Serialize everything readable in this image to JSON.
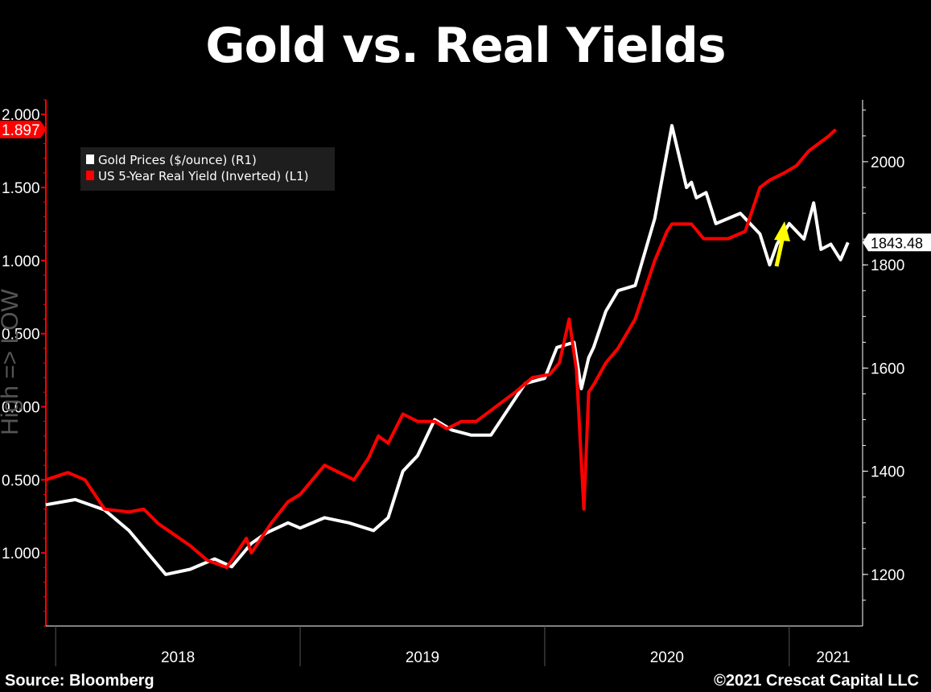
{
  "title": "Gold vs. Real Yields",
  "footer": {
    "source": "Source: Bloomberg",
    "copyright": "©2021 Crescat Capital LLC"
  },
  "colors": {
    "background": "#000000",
    "gold_series": "#ffffff",
    "yield_series": "#ff0000",
    "arrow": "#ffff00",
    "axis": "#ff0000"
  },
  "chart_data": {
    "type": "line",
    "legend": {
      "placement": "top-left",
      "entries": [
        "Gold Prices ($/ounce) (R1)",
        "US 5-Year Real Yield (Inverted) (L1)"
      ]
    },
    "grid": false,
    "x_axis": {
      "labels": [
        "2018",
        "2019",
        "2020",
        "2021"
      ],
      "range": [
        2017.96,
        2021.3
      ]
    },
    "left_axis": {
      "label": "High => LOW",
      "tick_labels": [
        "2.000",
        "1.500",
        "1.000",
        "0.500",
        "0.000",
        "0.500",
        "1.000"
      ],
      "ticks": [
        2.0,
        1.5,
        1.0,
        0.5,
        0.0,
        -0.5,
        -1.0
      ],
      "range": [
        -1.5,
        2.1
      ],
      "last_value_label": "1.897",
      "last_value": 1.897
    },
    "right_axis": {
      "tick_labels": [
        "1200",
        "1400",
        "1600",
        "1800",
        "2000"
      ],
      "ticks": [
        1200,
        1400,
        1600,
        1800,
        2000
      ],
      "range": [
        1100,
        2120
      ],
      "last_value_label": "1843.48",
      "last_value": 1843.48
    },
    "series": [
      {
        "name": "Gold Prices ($/ounce) (R1)",
        "axis": "right",
        "x": [
          2017.96,
          2018.08,
          2018.2,
          2018.3,
          2018.45,
          2018.55,
          2018.65,
          2018.72,
          2018.8,
          2018.86,
          2018.95,
          2019.0,
          2019.1,
          2019.2,
          2019.3,
          2019.36,
          2019.42,
          2019.48,
          2019.55,
          2019.62,
          2019.7,
          2019.78,
          2019.85,
          2019.92,
          2020.0,
          2020.05,
          2020.12,
          2020.15,
          2020.18,
          2020.2,
          2020.25,
          2020.3,
          2020.37,
          2020.45,
          2020.52,
          2020.58,
          2020.6,
          2020.62,
          2020.66,
          2020.7,
          2020.75,
          2020.8,
          2020.88,
          2020.92,
          2020.95,
          2021.0,
          2021.06,
          2021.1,
          2021.13,
          2021.17,
          2021.21,
          2021.24
        ],
        "y": [
          1335,
          1345,
          1325,
          1285,
          1200,
          1210,
          1230,
          1215,
          1260,
          1280,
          1300,
          1290,
          1310,
          1300,
          1285,
          1310,
          1400,
          1430,
          1500,
          1480,
          1470,
          1470,
          1520,
          1570,
          1580,
          1640,
          1650,
          1560,
          1620,
          1640,
          1710,
          1750,
          1760,
          1890,
          2070,
          1950,
          1960,
          1930,
          1940,
          1880,
          1890,
          1900,
          1860,
          1800,
          1840,
          1880,
          1850,
          1920,
          1830,
          1840,
          1810,
          1843.48
        ]
      },
      {
        "name": "US 5-Year Real Yield (Inverted) (L1)",
        "axis": "left",
        "x": [
          2017.96,
          2018.05,
          2018.12,
          2018.2,
          2018.3,
          2018.36,
          2018.42,
          2018.55,
          2018.62,
          2018.7,
          2018.78,
          2018.8,
          2018.88,
          2018.95,
          2019.0,
          2019.1,
          2019.16,
          2019.22,
          2019.28,
          2019.32,
          2019.36,
          2019.42,
          2019.48,
          2019.55,
          2019.6,
          2019.66,
          2019.72,
          2019.8,
          2019.88,
          2019.95,
          2020.02,
          2020.06,
          2020.1,
          2020.13,
          2020.16,
          2020.18,
          2020.2,
          2020.25,
          2020.3,
          2020.37,
          2020.45,
          2020.5,
          2020.52,
          2020.6,
          2020.65,
          2020.7,
          2020.75,
          2020.82,
          2020.88,
          2020.92,
          2020.98,
          2021.03,
          2021.08,
          2021.12,
          2021.16,
          2021.19
        ],
        "y": [
          -0.5,
          -0.45,
          -0.5,
          -0.7,
          -0.72,
          -0.7,
          -0.8,
          -0.95,
          -1.05,
          -1.1,
          -0.9,
          -1.0,
          -0.8,
          -0.65,
          -0.6,
          -0.4,
          -0.45,
          -0.5,
          -0.35,
          -0.2,
          -0.25,
          -0.05,
          -0.1,
          -0.1,
          -0.15,
          -0.1,
          -0.1,
          0.0,
          0.1,
          0.2,
          0.22,
          0.3,
          0.6,
          0.25,
          -0.7,
          0.1,
          0.15,
          0.3,
          0.4,
          0.6,
          1.0,
          1.2,
          1.25,
          1.25,
          1.15,
          1.15,
          1.15,
          1.2,
          1.5,
          1.55,
          1.6,
          1.65,
          1.75,
          1.8,
          1.85,
          1.897
        ]
      }
    ],
    "annotations": [
      {
        "type": "arrow",
        "color": "#ffff00",
        "direction": "up"
      }
    ]
  }
}
